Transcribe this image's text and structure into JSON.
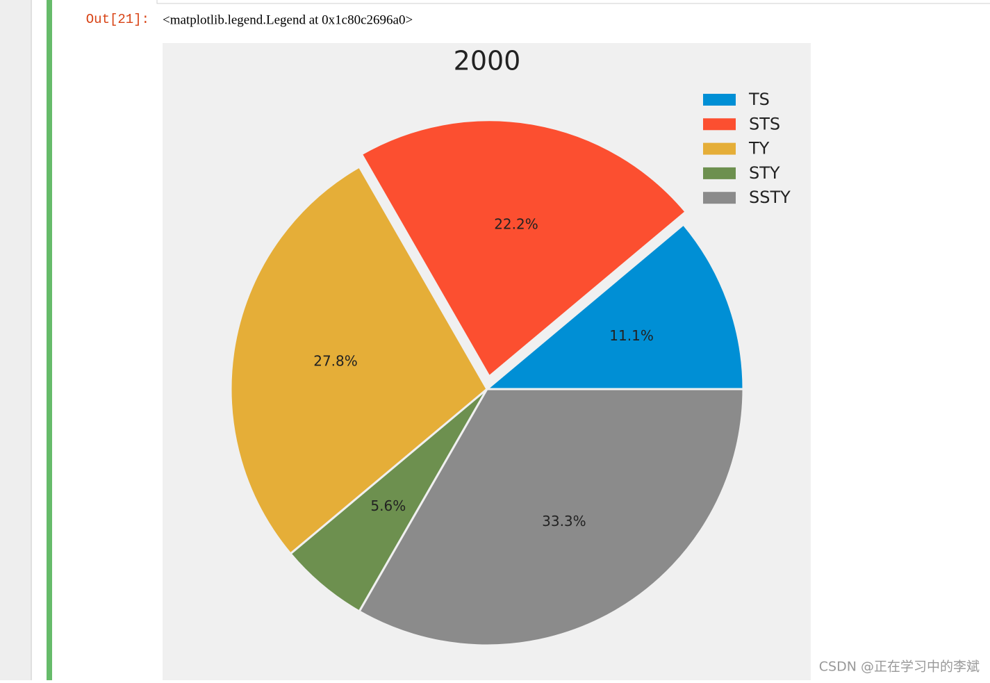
{
  "prompt": "Out[21]:",
  "output_text": "<matplotlib.legend.Legend at 0x1c80c2696a0>",
  "watermark": "CSDN @正在学习中的李斌",
  "chart_data": {
    "type": "pie",
    "title": "2000",
    "categories": [
      "TS",
      "STS",
      "TY",
      "STY",
      "SSTY"
    ],
    "values": [
      11.1,
      22.2,
      27.8,
      5.6,
      33.3
    ],
    "value_labels": [
      "11.1%",
      "22.2%",
      "27.8%",
      "5.6%",
      "33.3%"
    ],
    "colors": [
      "#008fd5",
      "#fc4f30",
      "#e5ae38",
      "#6d904f",
      "#8b8b8b"
    ],
    "explode": [
      0,
      0.05,
      0,
      0,
      0
    ],
    "legend": "upper right"
  }
}
